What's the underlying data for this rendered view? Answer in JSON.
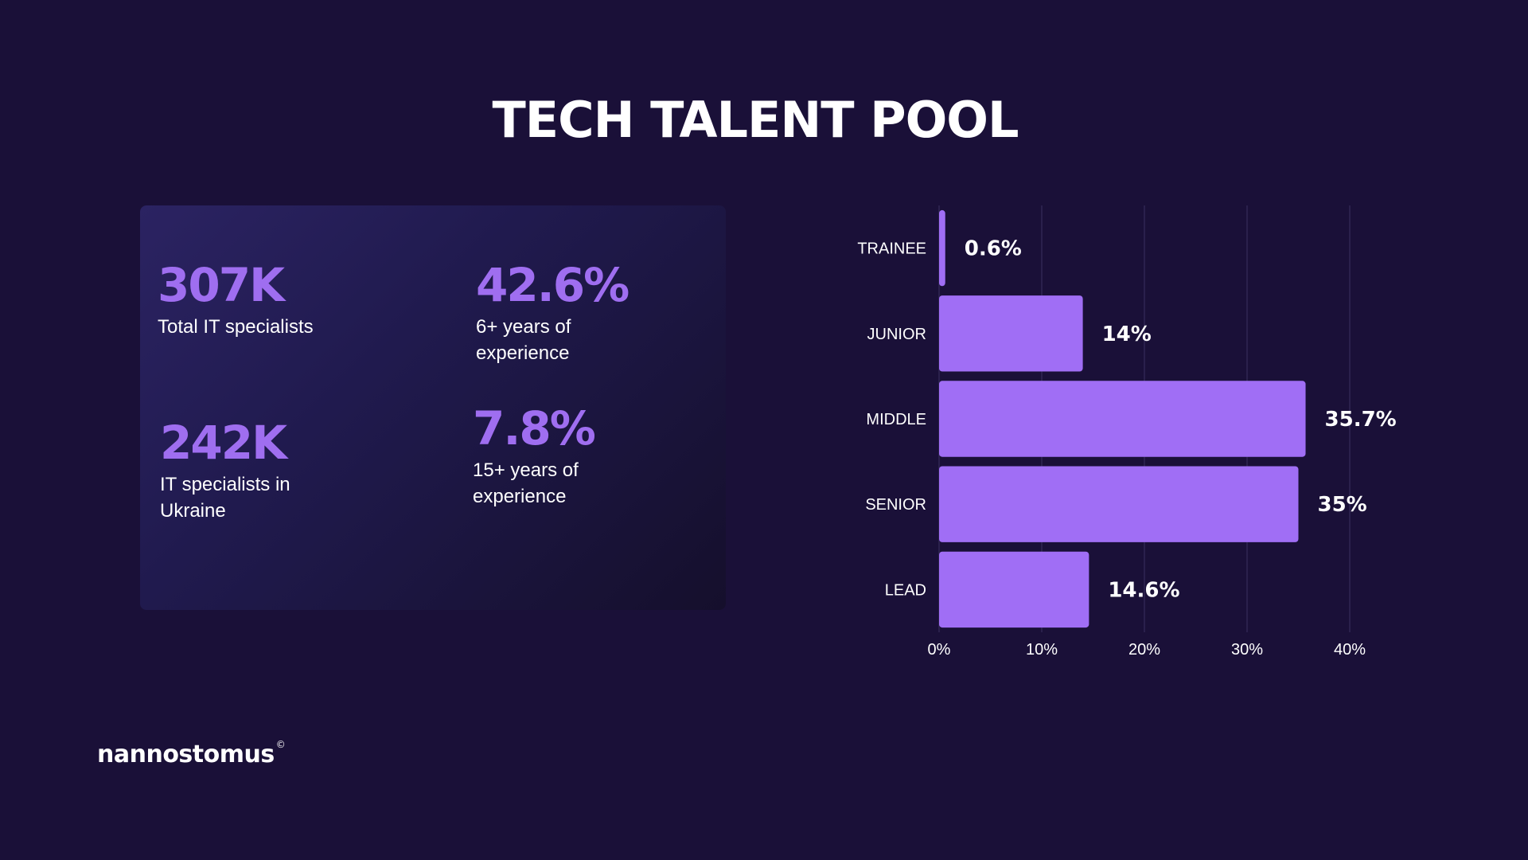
{
  "title": "TECH TALENT POOL",
  "stats": [
    {
      "value": "307K",
      "label": "Total IT specialists"
    },
    {
      "value": "42.6%",
      "label": "6+ years of\nexperience"
    },
    {
      "value": "242K",
      "label": "IT specialists in\nUkraine"
    },
    {
      "value": "7.8%",
      "label": "15+ years of\nexperience"
    }
  ],
  "colors": {
    "background": "#1a1038",
    "accent": "#9f6ef0",
    "bar": "#a06ef5",
    "grid": "#3a3060"
  },
  "chart_data": {
    "type": "bar",
    "orientation": "horizontal",
    "categories": [
      "TRAINEE",
      "JUNIOR",
      "MIDDLE",
      "SENIOR",
      "LEAD"
    ],
    "values": [
      0.6,
      14,
      35.7,
      35,
      14.6
    ],
    "data_labels": [
      "0.6%",
      "14%",
      "35.7%",
      "35%",
      "14.6%"
    ],
    "x_ticks": [
      "0%",
      "10%",
      "20%",
      "30%",
      "40%"
    ],
    "xlim": [
      0,
      40
    ],
    "grid": true
  },
  "logo": {
    "text": "nannostomus",
    "mark": "©"
  }
}
